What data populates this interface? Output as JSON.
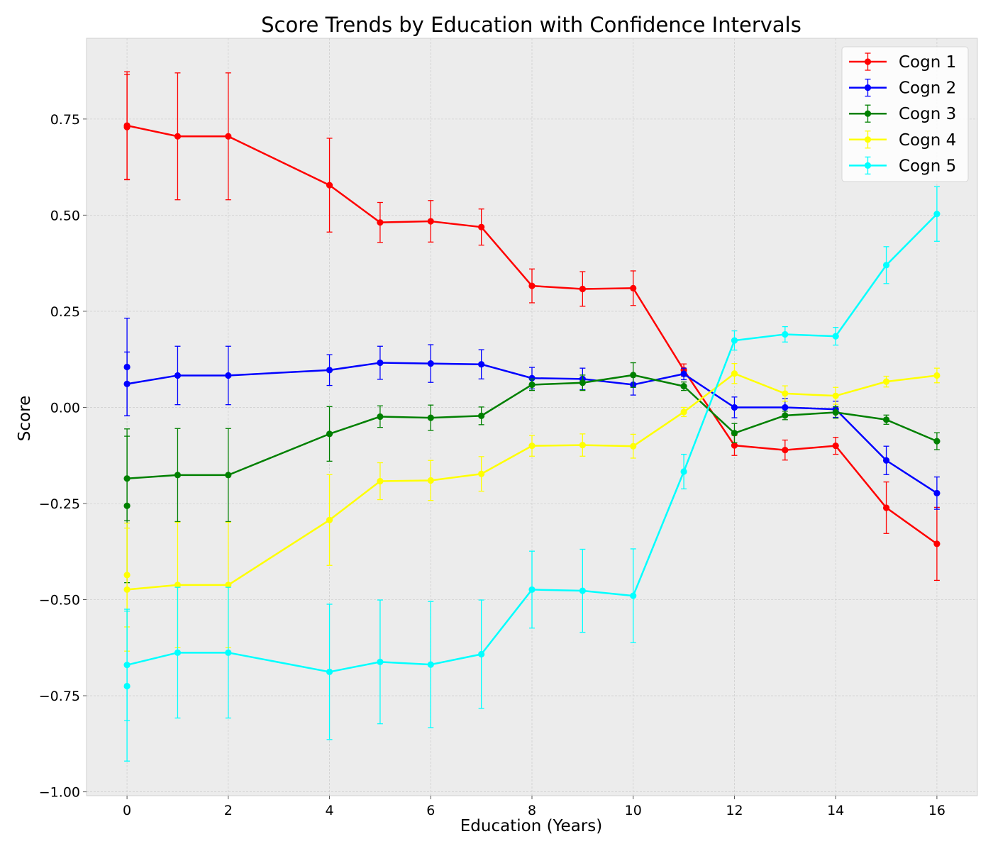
{
  "chart_data": {
    "type": "line",
    "title": "Score Trends by Education with Confidence Intervals",
    "xlabel": "Education (Years)",
    "ylabel": "Score",
    "xlim": [
      -0.8,
      16.8
    ],
    "ylim": [
      -1.01,
      0.96
    ],
    "xticks": [
      0,
      2,
      4,
      6,
      8,
      10,
      12,
      14,
      16
    ],
    "yticks": [
      0.75,
      0.5,
      0.25,
      0.0,
      -0.25,
      -0.5,
      -0.75,
      -1.0
    ],
    "xtick_labels": [
      "0",
      "2",
      "4",
      "6",
      "8",
      "10",
      "12",
      "14",
      "16"
    ],
    "ytick_labels": [
      "0.75",
      "0.50",
      "0.25",
      "0.00",
      "−0.25",
      "−0.50",
      "−0.75",
      "−1.00"
    ],
    "grid": true,
    "legend_position": "top-right",
    "extra_points": [
      {
        "series": "Cogn 1",
        "x": 0,
        "y": 0.729,
        "err": 0.137
      },
      {
        "series": "Cogn 2",
        "x": 0,
        "y": 0.105,
        "err": 0.127
      },
      {
        "series": "Cogn 3",
        "x": 0,
        "y": -0.256,
        "err": 0.2
      },
      {
        "series": "Cogn 4",
        "x": 0,
        "y": -0.436,
        "err": 0.135
      },
      {
        "series": "Cogn 5",
        "x": 0,
        "y": -0.725,
        "err": 0.195
      }
    ],
    "series": [
      {
        "name": "Cogn 1",
        "color": "#ff0000",
        "x": [
          0,
          1,
          2,
          4,
          5,
          6,
          7,
          8,
          9,
          10,
          11,
          12,
          13,
          14,
          15,
          16
        ],
        "y": [
          0.733,
          0.705,
          0.705,
          0.578,
          0.481,
          0.484,
          0.469,
          0.316,
          0.308,
          0.31,
          0.097,
          -0.099,
          -0.111,
          -0.1,
          -0.261,
          -0.355
        ],
        "err": [
          0.14,
          0.165,
          0.165,
          0.122,
          0.052,
          0.054,
          0.047,
          0.044,
          0.045,
          0.045,
          0.016,
          0.026,
          0.026,
          0.022,
          0.067,
          0.095
        ]
      },
      {
        "name": "Cogn 2",
        "color": "#0000ff",
        "x": [
          0,
          1,
          2,
          4,
          5,
          6,
          7,
          8,
          9,
          10,
          11,
          12,
          13,
          14,
          15,
          16
        ],
        "y": [
          0.061,
          0.083,
          0.083,
          0.097,
          0.116,
          0.114,
          0.112,
          0.076,
          0.074,
          0.059,
          0.087,
          0.0,
          0.0,
          -0.005,
          -0.138,
          -0.223
        ],
        "err": [
          0.083,
          0.076,
          0.076,
          0.04,
          0.043,
          0.049,
          0.038,
          0.028,
          0.028,
          0.027,
          0.015,
          0.027,
          0.023,
          0.021,
          0.037,
          0.042
        ]
      },
      {
        "name": "Cogn 3",
        "color": "#008000",
        "x": [
          0,
          1,
          2,
          4,
          5,
          6,
          7,
          8,
          9,
          10,
          11,
          12,
          13,
          14,
          15,
          16
        ],
        "y": [
          -0.185,
          -0.176,
          -0.176,
          -0.069,
          -0.024,
          -0.027,
          -0.022,
          0.059,
          0.064,
          0.084,
          0.055,
          -0.067,
          -0.021,
          -0.013,
          -0.032,
          -0.088
        ],
        "err": [
          0.11,
          0.121,
          0.121,
          0.071,
          0.028,
          0.033,
          0.023,
          0.015,
          0.02,
          0.032,
          0.011,
          0.025,
          0.011,
          0.015,
          0.012,
          0.022
        ]
      },
      {
        "name": "Cogn 4",
        "color": "#ffff00",
        "x": [
          0,
          1,
          2,
          4,
          5,
          6,
          7,
          8,
          9,
          10,
          11,
          12,
          13,
          14,
          15,
          16
        ],
        "y": [
          -0.474,
          -0.462,
          -0.462,
          -0.293,
          -0.192,
          -0.19,
          -0.173,
          -0.1,
          -0.098,
          -0.101,
          -0.012,
          0.088,
          0.036,
          0.03,
          0.067,
          0.083
        ],
        "err": [
          0.16,
          0.163,
          0.163,
          0.118,
          0.048,
          0.052,
          0.045,
          0.027,
          0.029,
          0.031,
          0.012,
          0.026,
          0.02,
          0.022,
          0.014,
          0.019
        ]
      },
      {
        "name": "Cogn 5",
        "color": "#00ffff",
        "x": [
          0,
          1,
          2,
          4,
          5,
          6,
          7,
          8,
          9,
          10,
          11,
          12,
          13,
          14,
          15,
          16
        ],
        "y": [
          -0.67,
          -0.638,
          -0.638,
          -0.688,
          -0.662,
          -0.669,
          -0.642,
          -0.474,
          -0.477,
          -0.49,
          -0.167,
          0.174,
          0.19,
          0.185,
          0.37,
          0.503
        ],
        "err": [
          0.145,
          0.17,
          0.17,
          0.176,
          0.161,
          0.164,
          0.141,
          0.1,
          0.108,
          0.122,
          0.045,
          0.025,
          0.02,
          0.023,
          0.048,
          0.071
        ]
      }
    ]
  }
}
